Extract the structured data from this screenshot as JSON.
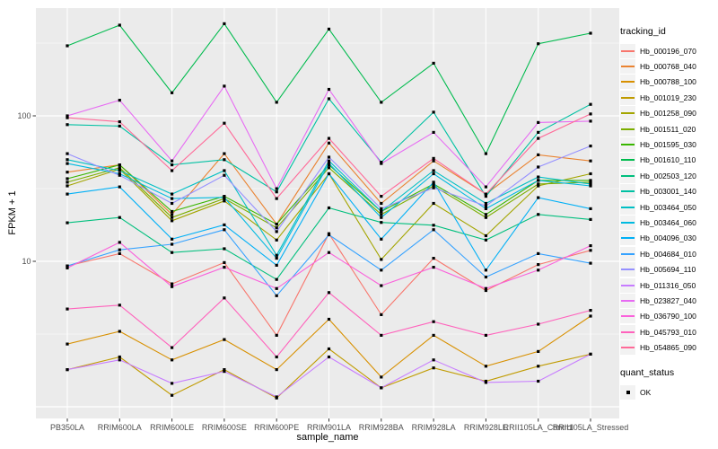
{
  "figure": {
    "background": "#FFFFFF",
    "panel_background": "#EBEBEB",
    "grid_color": "#FFFFFF",
    "point_color": "#000000",
    "tick_label_color": "#4D4D4D"
  },
  "axes": {
    "x_label": "sample_name",
    "y_label": "FPKM + 1",
    "y_tick_labels": [
      "100",
      "10"
    ]
  },
  "legend": {
    "tracking_title": "tracking_id",
    "quant_title": "quant_status",
    "quant_items": [
      {
        "label": "OK",
        "marker": "black-square"
      }
    ]
  },
  "chart_data": {
    "type": "line",
    "title": "",
    "xlabel": "sample_name",
    "ylabel": "FPKM + 1",
    "y_scale": "log10",
    "ylim": [
      0.85,
      560
    ],
    "y_major_gridlines": [
      1,
      10,
      100
    ],
    "y_minor_gridlines": [
      3.162,
      31.62,
      316.2
    ],
    "y_tick_values": [
      10,
      100
    ],
    "grid": "on",
    "legend_position": "right",
    "point_marker": "small-black-square",
    "categories": [
      "PB350LA",
      "RRIM600LA",
      "RRIM600LE",
      "RRIM600SE",
      "RRIM600PE",
      "RRIM901LA",
      "RRIM928BA",
      "RRIM928LA",
      "RRIM928LE",
      "RRII105LA_Control",
      "RRII105LA_Stressed"
    ],
    "series": [
      {
        "name": "Hb_000196_070",
        "color": "#F8766D",
        "values": [
          9.3,
          11.3,
          7.0,
          9.8,
          3.1,
          15.5,
          4.3,
          10.5,
          6.3,
          9.5,
          11.9
        ]
      },
      {
        "name": "Hb_000768_040",
        "color": "#EA8331",
        "values": [
          41,
          46,
          21,
          55,
          18,
          65,
          25,
          49,
          29,
          54,
          49
        ]
      },
      {
        "name": "Hb_000788_100",
        "color": "#D89000",
        "values": [
          2.7,
          3.3,
          2.1,
          2.9,
          1.8,
          4.0,
          1.6,
          3.1,
          1.9,
          2.4,
          4.2
        ]
      },
      {
        "name": "Hb_001019_230",
        "color": "#C09B00",
        "values": [
          1.8,
          2.2,
          1.2,
          1.8,
          1.15,
          2.5,
          1.35,
          1.85,
          1.5,
          1.9,
          2.3
        ]
      },
      {
        "name": "Hb_001258_090",
        "color": "#A3A500",
        "values": [
          33,
          43,
          19,
          26,
          14,
          40,
          10.3,
          25,
          15,
          33,
          40
        ]
      },
      {
        "name": "Hb_001511_020",
        "color": "#7CAE00",
        "values": [
          35,
          44,
          20,
          27,
          17,
          44,
          21,
          33,
          20,
          34,
          35
        ]
      },
      {
        "name": "Hb_001595_030",
        "color": "#39B600",
        "values": [
          37,
          46,
          22,
          28,
          18,
          46,
          22,
          34,
          21,
          36,
          36
        ]
      },
      {
        "name": "Hb_001610_110",
        "color": "#00BB4E",
        "values": [
          303,
          420,
          144,
          430,
          124,
          395,
          124,
          230,
          55,
          313,
          370
        ]
      },
      {
        "name": "Hb_002503_120",
        "color": "#00BF7D",
        "values": [
          18.4,
          20,
          11.5,
          12.2,
          7.5,
          23.3,
          18.5,
          17.7,
          14,
          21,
          19.4
        ]
      },
      {
        "name": "Hb_003001_140",
        "color": "#00C1A3",
        "values": [
          87,
          85,
          46,
          50,
          30,
          131,
          48,
          106,
          28,
          77,
          120
        ]
      },
      {
        "name": "Hb_003464_050",
        "color": "#00BFC4",
        "values": [
          50,
          42,
          29,
          42,
          11,
          49,
          22,
          42,
          25,
          38,
          34
        ]
      },
      {
        "name": "Hb_003464_060",
        "color": "#00BAE0",
        "values": [
          47,
          40,
          27,
          27.5,
          10.5,
          47,
          20,
          40,
          23,
          36,
          33
        ]
      },
      {
        "name": "Hb_004096_030",
        "color": "#00B0F6",
        "values": [
          29,
          32.5,
          14.2,
          17.8,
          9.4,
          40,
          14.2,
          35,
          8.7,
          27.4,
          23
        ]
      },
      {
        "name": "Hb_004684_010",
        "color": "#35A2FF",
        "values": [
          9.3,
          12.0,
          13.1,
          16.5,
          5.8,
          15.2,
          8.7,
          16.5,
          7.8,
          11.3,
          9.7
        ]
      },
      {
        "name": "Hb_005694_110",
        "color": "#9590FF",
        "values": [
          55,
          39,
          25,
          39,
          16,
          52,
          23,
          32,
          24,
          44.5,
          62
        ]
      },
      {
        "name": "Hb_011316_050",
        "color": "#C77CFF",
        "values": [
          1.8,
          2.1,
          1.45,
          1.75,
          1.17,
          2.2,
          1.35,
          2.1,
          1.47,
          1.5,
          2.3
        ]
      },
      {
        "name": "Hb_023827_040",
        "color": "#E76BF3",
        "values": [
          100,
          128,
          49,
          160,
          31.6,
          152,
          47,
          77,
          32.5,
          90,
          92
        ]
      },
      {
        "name": "Hb_036790_100",
        "color": "#FA62DB",
        "values": [
          9.0,
          13.5,
          6.7,
          9.1,
          6.5,
          11.5,
          6.8,
          9.1,
          6.5,
          8.7,
          12.8
        ]
      },
      {
        "name": "Hb_045793_010",
        "color": "#FF62BC",
        "values": [
          4.7,
          5.0,
          2.55,
          5.6,
          2.2,
          6.1,
          3.1,
          3.85,
          3.1,
          3.7,
          4.6
        ]
      },
      {
        "name": "Hb_054865_090",
        "color": "#FF6A98",
        "values": [
          97,
          91,
          42,
          89,
          27,
          70,
          28,
          51,
          29,
          70,
          103
        ]
      }
    ]
  }
}
